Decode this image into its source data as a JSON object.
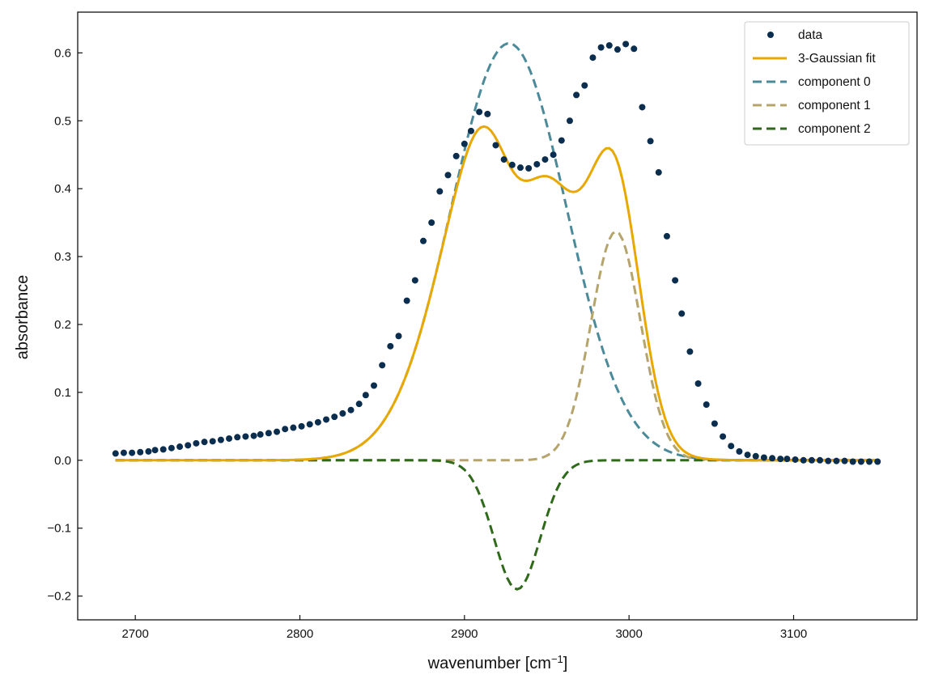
{
  "chart_data": {
    "type": "line",
    "xlabel": "wavenumber [cm",
    "xlabel_sup": "−1",
    "xlabel_suffix": "]",
    "ylabel": "absorbance",
    "xlim": [
      2665,
      3175
    ],
    "ylim": [
      -0.235,
      0.66
    ],
    "x_ticks": [
      2700,
      2800,
      2900,
      3000,
      3100
    ],
    "y_ticks": [
      -0.2,
      -0.1,
      0.0,
      0.1,
      0.2,
      0.3,
      0.4,
      0.5,
      0.6
    ],
    "x_tick_labels": [
      "2700",
      "2800",
      "2900",
      "3000",
      "3100"
    ],
    "y_tick_labels": [
      "−0.2",
      "−0.1",
      "0.0",
      "0.1",
      "0.2",
      "0.3",
      "0.4",
      "0.5",
      "0.6"
    ],
    "grid": false,
    "legend_position": "top-right",
    "data_series": {
      "name": "data",
      "color": "#0b2d4e",
      "x": [
        2688,
        2693,
        2698,
        2703,
        2708,
        2712,
        2717,
        2722,
        2727,
        2732,
        2737,
        2742,
        2747,
        2752,
        2757,
        2762,
        2767,
        2772,
        2776,
        2781,
        2786,
        2791,
        2796,
        2801,
        2806,
        2811,
        2816,
        2821,
        2826,
        2831,
        2836,
        2840,
        2845,
        2850,
        2855,
        2860,
        2865,
        2870,
        2875,
        2880,
        2885,
        2890,
        2895,
        2900,
        2904,
        2909,
        2914,
        2919,
        2924,
        2929,
        2934,
        2939,
        2944,
        2949,
        2954,
        2959,
        2964,
        2968,
        2973,
        2978,
        2983,
        2988,
        2993,
        2998,
        3003,
        3008,
        3013,
        3018,
        3023,
        3028,
        3032,
        3037,
        3042,
        3047,
        3052,
        3057,
        3062,
        3067,
        3072,
        3077,
        3082,
        3087,
        3092,
        3096,
        3101,
        3106,
        3111,
        3116,
        3121,
        3126,
        3131,
        3136,
        3141,
        3146,
        3151
      ],
      "y": [
        0.01,
        0.011,
        0.011,
        0.012,
        0.013,
        0.015,
        0.016,
        0.018,
        0.02,
        0.022,
        0.025,
        0.027,
        0.028,
        0.03,
        0.032,
        0.034,
        0.035,
        0.036,
        0.038,
        0.04,
        0.042,
        0.046,
        0.048,
        0.05,
        0.053,
        0.056,
        0.06,
        0.064,
        0.069,
        0.074,
        0.083,
        0.096,
        0.11,
        0.14,
        0.168,
        0.183,
        0.235,
        0.265,
        0.323,
        0.35,
        0.396,
        0.42,
        0.448,
        0.466,
        0.485,
        0.513,
        0.51,
        0.464,
        0.443,
        0.435,
        0.431,
        0.43,
        0.436,
        0.443,
        0.45,
        0.471,
        0.5,
        0.538,
        0.552,
        0.593,
        0.608,
        0.611,
        0.605,
        0.613,
        0.606,
        0.52,
        0.47,
        0.424,
        0.33,
        0.265,
        0.216,
        0.16,
        0.113,
        0.082,
        0.054,
        0.035,
        0.021,
        0.013,
        0.008,
        0.006,
        0.004,
        0.003,
        0.002,
        0.002,
        0.001,
        0.0,
        0.0,
        0.0,
        -0.001,
        -0.001,
        -0.001,
        -0.002,
        -0.002,
        -0.002,
        -0.002
      ]
    },
    "fit": {
      "name": "3-Gaussian fit",
      "color": "#e8a800",
      "components": [
        {
          "name": "component 0",
          "color": "#4a8a99",
          "amplitude": 0.614,
          "center": 2927,
          "sigma": 35
        },
        {
          "name": "component 1",
          "color": "#b5a46c",
          "amplitude": 0.337,
          "center": 2992,
          "sigma": 15
        },
        {
          "name": "component 2",
          "color": "#2e6a1a",
          "amplitude": -0.19,
          "center": 2932,
          "sigma": 14
        }
      ],
      "x_min": 2688,
      "x_max": 3151
    }
  }
}
